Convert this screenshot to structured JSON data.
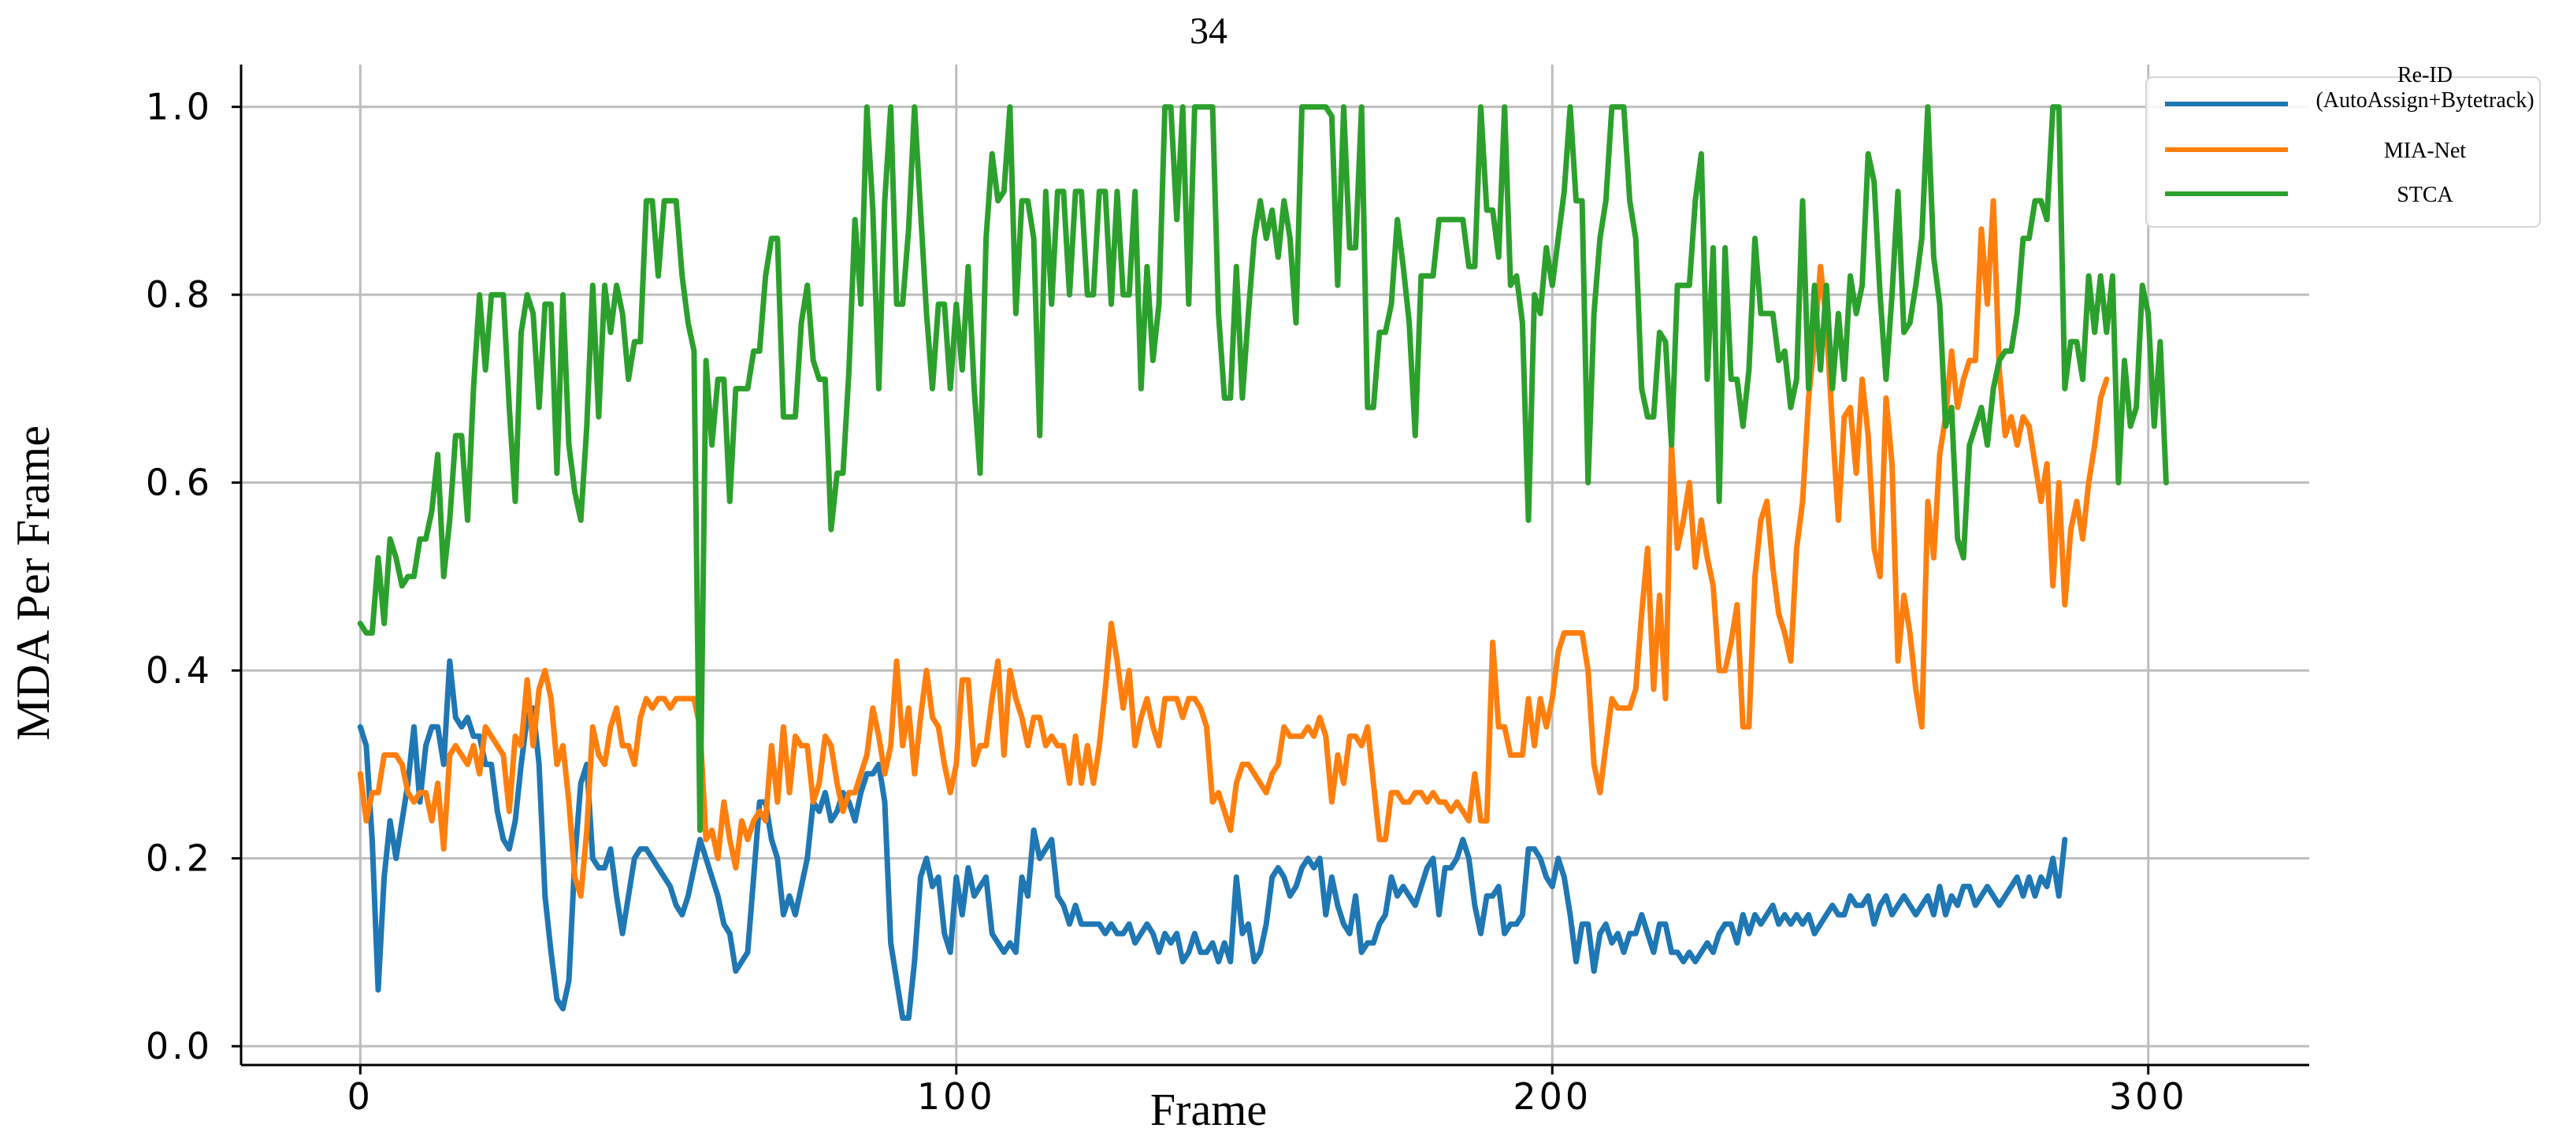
{
  "chart_data": {
    "type": "line",
    "title": "34",
    "xlabel": "Frame",
    "ylabel": "MDA Per Frame",
    "xlim": [
      -20,
      327
    ],
    "ylim": [
      -0.02,
      1.045
    ],
    "xticks": [
      0,
      100,
      200,
      300
    ],
    "xtick_labels": [
      "0",
      "100",
      "200",
      "300"
    ],
    "yticks": [
      0.0,
      0.2,
      0.4,
      0.6,
      0.8,
      1.0
    ],
    "ytick_labels": [
      "0.0",
      "0.2",
      "0.4",
      "0.6",
      "0.8",
      "1.0"
    ],
    "grid": true,
    "legend_position": "top-right",
    "series": [
      {
        "name": "Re-ID\n(AutoAssign+Bytetrack)",
        "color": "#1f77b4",
        "x0": 0,
        "values": [
          0.34,
          0.32,
          0.22,
          0.06,
          0.18,
          0.24,
          0.2,
          0.24,
          0.28,
          0.34,
          0.26,
          0.32,
          0.34,
          0.34,
          0.3,
          0.41,
          0.35,
          0.34,
          0.35,
          0.33,
          0.33,
          0.3,
          0.3,
          0.25,
          0.22,
          0.21,
          0.24,
          0.3,
          0.35,
          0.36,
          0.3,
          0.16,
          0.1,
          0.05,
          0.04,
          0.07,
          0.2,
          0.28,
          0.3,
          0.2,
          0.19,
          0.19,
          0.21,
          0.16,
          0.12,
          0.16,
          0.2,
          0.21,
          0.21,
          0.2,
          0.19,
          0.18,
          0.17,
          0.15,
          0.14,
          0.16,
          0.19,
          0.22,
          0.2,
          0.18,
          0.16,
          0.13,
          0.12,
          0.08,
          0.09,
          0.1,
          0.18,
          0.26,
          0.26,
          0.22,
          0.2,
          0.14,
          0.16,
          0.14,
          0.17,
          0.2,
          0.26,
          0.25,
          0.27,
          0.24,
          0.25,
          0.27,
          0.26,
          0.24,
          0.27,
          0.29,
          0.29,
          0.3,
          0.26,
          0.11,
          0.07,
          0.03,
          0.03,
          0.09,
          0.18,
          0.2,
          0.17,
          0.18,
          0.12,
          0.1,
          0.18,
          0.14,
          0.19,
          0.16,
          0.17,
          0.18,
          0.12,
          0.11,
          0.1,
          0.11,
          0.1,
          0.18,
          0.16,
          0.23,
          0.2,
          0.21,
          0.22,
          0.16,
          0.15,
          0.13,
          0.15,
          0.13,
          0.13,
          0.13,
          0.13,
          0.12,
          0.13,
          0.12,
          0.12,
          0.13,
          0.11,
          0.12,
          0.13,
          0.12,
          0.1,
          0.12,
          0.11,
          0.12,
          0.09,
          0.1,
          0.12,
          0.1,
          0.1,
          0.11,
          0.09,
          0.11,
          0.09,
          0.18,
          0.12,
          0.13,
          0.09,
          0.1,
          0.13,
          0.18,
          0.19,
          0.18,
          0.16,
          0.17,
          0.19,
          0.2,
          0.19,
          0.2,
          0.14,
          0.18,
          0.15,
          0.13,
          0.12,
          0.16,
          0.1,
          0.11,
          0.11,
          0.13,
          0.14,
          0.18,
          0.16,
          0.17,
          0.16,
          0.15,
          0.17,
          0.19,
          0.2,
          0.14,
          0.19,
          0.19,
          0.2,
          0.22,
          0.2,
          0.15,
          0.12,
          0.16,
          0.16,
          0.17,
          0.12,
          0.13,
          0.13,
          0.14,
          0.21,
          0.21,
          0.2,
          0.18,
          0.17,
          0.2,
          0.18,
          0.14,
          0.09,
          0.13,
          0.13,
          0.08,
          0.12,
          0.13,
          0.11,
          0.12,
          0.1,
          0.12,
          0.12,
          0.14,
          0.12,
          0.1,
          0.13,
          0.13,
          0.1,
          0.1,
          0.09,
          0.1,
          0.09,
          0.1,
          0.11,
          0.1,
          0.12,
          0.13,
          0.13,
          0.11,
          0.14,
          0.12,
          0.14,
          0.13,
          0.14,
          0.15,
          0.13,
          0.14,
          0.13,
          0.14,
          0.13,
          0.14,
          0.12,
          0.13,
          0.14,
          0.15,
          0.14,
          0.14,
          0.16,
          0.15,
          0.15,
          0.16,
          0.13,
          0.15,
          0.16,
          0.14,
          0.15,
          0.16,
          0.15,
          0.14,
          0.15,
          0.16,
          0.14,
          0.17,
          0.14,
          0.16,
          0.15,
          0.17,
          0.17,
          0.15,
          0.16,
          0.17,
          0.16,
          0.15,
          0.16,
          0.17,
          0.18,
          0.16,
          0.18,
          0.16,
          0.18,
          0.17,
          0.2,
          0.16,
          0.22
        ]
      },
      {
        "name": "MIA-Net",
        "color": "#ff7f0e",
        "x0": 0,
        "values": [
          0.29,
          0.24,
          0.27,
          0.27,
          0.31,
          0.31,
          0.31,
          0.3,
          0.27,
          0.26,
          0.27,
          0.27,
          0.24,
          0.28,
          0.21,
          0.31,
          0.32,
          0.31,
          0.3,
          0.32,
          0.29,
          0.34,
          0.33,
          0.32,
          0.31,
          0.25,
          0.33,
          0.32,
          0.39,
          0.32,
          0.38,
          0.4,
          0.37,
          0.3,
          0.32,
          0.26,
          0.18,
          0.16,
          0.23,
          0.34,
          0.31,
          0.3,
          0.34,
          0.36,
          0.32,
          0.32,
          0.3,
          0.35,
          0.37,
          0.36,
          0.37,
          0.37,
          0.36,
          0.37,
          0.37,
          0.37,
          0.37,
          0.34,
          0.22,
          0.23,
          0.2,
          0.26,
          0.22,
          0.19,
          0.24,
          0.22,
          0.24,
          0.25,
          0.24,
          0.32,
          0.26,
          0.34,
          0.27,
          0.33,
          0.32,
          0.32,
          0.26,
          0.28,
          0.33,
          0.32,
          0.28,
          0.25,
          0.27,
          0.27,
          0.29,
          0.31,
          0.36,
          0.33,
          0.29,
          0.32,
          0.41,
          0.32,
          0.36,
          0.29,
          0.35,
          0.4,
          0.35,
          0.34,
          0.3,
          0.27,
          0.3,
          0.39,
          0.39,
          0.3,
          0.32,
          0.32,
          0.37,
          0.41,
          0.31,
          0.4,
          0.37,
          0.35,
          0.32,
          0.35,
          0.35,
          0.32,
          0.33,
          0.32,
          0.32,
          0.28,
          0.33,
          0.28,
          0.32,
          0.28,
          0.32,
          0.38,
          0.45,
          0.41,
          0.36,
          0.4,
          0.32,
          0.35,
          0.37,
          0.34,
          0.32,
          0.37,
          0.37,
          0.37,
          0.35,
          0.37,
          0.37,
          0.36,
          0.34,
          0.26,
          0.27,
          0.25,
          0.23,
          0.28,
          0.3,
          0.3,
          0.29,
          0.28,
          0.27,
          0.29,
          0.3,
          0.34,
          0.33,
          0.33,
          0.33,
          0.34,
          0.33,
          0.35,
          0.33,
          0.26,
          0.31,
          0.28,
          0.33,
          0.33,
          0.32,
          0.34,
          0.28,
          0.22,
          0.22,
          0.27,
          0.27,
          0.26,
          0.26,
          0.27,
          0.27,
          0.26,
          0.27,
          0.26,
          0.26,
          0.25,
          0.26,
          0.25,
          0.24,
          0.29,
          0.24,
          0.24,
          0.43,
          0.34,
          0.34,
          0.31,
          0.31,
          0.31,
          0.37,
          0.32,
          0.37,
          0.34,
          0.37,
          0.42,
          0.44,
          0.44,
          0.44,
          0.44,
          0.4,
          0.3,
          0.27,
          0.32,
          0.37,
          0.36,
          0.36,
          0.36,
          0.38,
          0.46,
          0.53,
          0.38,
          0.48,
          0.37,
          0.64,
          0.53,
          0.56,
          0.6,
          0.51,
          0.56,
          0.52,
          0.49,
          0.4,
          0.4,
          0.43,
          0.47,
          0.34,
          0.34,
          0.5,
          0.56,
          0.58,
          0.51,
          0.46,
          0.44,
          0.41,
          0.53,
          0.58,
          0.69,
          0.75,
          0.83,
          0.77,
          0.66,
          0.56,
          0.67,
          0.68,
          0.61,
          0.71,
          0.65,
          0.53,
          0.5,
          0.69,
          0.62,
          0.41,
          0.48,
          0.44,
          0.38,
          0.34,
          0.58,
          0.52,
          0.63,
          0.67,
          0.74,
          0.68,
          0.71,
          0.73,
          0.73,
          0.87,
          0.79,
          0.9,
          0.72,
          0.65,
          0.67,
          0.64,
          0.67,
          0.66,
          0.62,
          0.58,
          0.62,
          0.49,
          0.6,
          0.47,
          0.55,
          0.58,
          0.54,
          0.6,
          0.64,
          0.69,
          0.71
        ]
      },
      {
        "name": "STCA",
        "color": "#2ca02c",
        "x0": 0,
        "values": [
          0.45,
          0.44,
          0.44,
          0.52,
          0.45,
          0.54,
          0.52,
          0.49,
          0.5,
          0.5,
          0.54,
          0.54,
          0.57,
          0.63,
          0.5,
          0.56,
          0.65,
          0.65,
          0.56,
          0.7,
          0.8,
          0.72,
          0.8,
          0.8,
          0.8,
          0.68,
          0.58,
          0.76,
          0.8,
          0.78,
          0.68,
          0.79,
          0.79,
          0.61,
          0.8,
          0.64,
          0.59,
          0.56,
          0.66,
          0.81,
          0.67,
          0.81,
          0.76,
          0.81,
          0.78,
          0.71,
          0.75,
          0.75,
          0.9,
          0.9,
          0.82,
          0.9,
          0.9,
          0.9,
          0.82,
          0.77,
          0.74,
          0.23,
          0.73,
          0.64,
          0.71,
          0.71,
          0.58,
          0.7,
          0.7,
          0.7,
          0.74,
          0.74,
          0.82,
          0.86,
          0.86,
          0.67,
          0.67,
          0.67,
          0.77,
          0.81,
          0.73,
          0.71,
          0.71,
          0.55,
          0.61,
          0.61,
          0.72,
          0.88,
          0.79,
          1.0,
          0.89,
          0.7,
          0.9,
          1.0,
          0.79,
          0.79,
          0.87,
          1.0,
          0.89,
          0.78,
          0.7,
          0.79,
          0.79,
          0.7,
          0.79,
          0.72,
          0.83,
          0.7,
          0.61,
          0.86,
          0.95,
          0.9,
          0.91,
          1.0,
          0.78,
          0.9,
          0.9,
          0.86,
          0.65,
          0.91,
          0.79,
          0.91,
          0.91,
          0.8,
          0.91,
          0.91,
          0.8,
          0.8,
          0.91,
          0.91,
          0.79,
          0.91,
          0.8,
          0.8,
          0.91,
          0.7,
          0.83,
          0.73,
          0.79,
          1.0,
          1.0,
          0.88,
          1.0,
          0.79,
          1.0,
          1.0,
          1.0,
          1.0,
          0.78,
          0.69,
          0.69,
          0.83,
          0.69,
          0.78,
          0.86,
          0.9,
          0.86,
          0.89,
          0.84,
          0.9,
          0.86,
          0.77,
          1.0,
          1.0,
          1.0,
          1.0,
          1.0,
          0.99,
          0.81,
          1.0,
          0.85,
          0.85,
          1.0,
          0.68,
          0.68,
          0.76,
          0.76,
          0.79,
          0.88,
          0.83,
          0.77,
          0.65,
          0.82,
          0.82,
          0.82,
          0.88,
          0.88,
          0.88,
          0.88,
          0.88,
          0.83,
          0.83,
          1.0,
          0.89,
          0.89,
          0.84,
          1.0,
          0.81,
          0.82,
          0.77,
          0.56,
          0.8,
          0.78,
          0.85,
          0.81,
          0.86,
          0.91,
          1.0,
          0.9,
          0.9,
          0.6,
          0.78,
          0.86,
          0.9,
          1.0,
          1.0,
          1.0,
          0.9,
          0.86,
          0.7,
          0.67,
          0.67,
          0.76,
          0.75,
          0.64,
          0.81,
          0.81,
          0.81,
          0.9,
          0.95,
          0.71,
          0.85,
          0.58,
          0.85,
          0.71,
          0.71,
          0.66,
          0.72,
          0.86,
          0.78,
          0.78,
          0.78,
          0.73,
          0.74,
          0.68,
          0.71,
          0.9,
          0.7,
          0.81,
          0.72,
          0.81,
          0.7,
          0.78,
          0.71,
          0.82,
          0.78,
          0.81,
          0.95,
          0.92,
          0.8,
          0.71,
          0.8,
          0.91,
          0.76,
          0.77,
          0.81,
          0.86,
          1.0,
          0.84,
          0.79,
          0.66,
          0.68,
          0.54,
          0.52,
          0.64,
          0.66,
          0.68,
          0.64,
          0.7,
          0.73,
          0.74,
          0.74,
          0.78,
          0.86,
          0.86,
          0.9,
          0.9,
          0.88,
          1.0,
          1.0,
          0.7,
          0.75,
          0.75,
          0.71,
          0.82,
          0.76,
          0.82,
          0.76,
          0.82,
          0.6,
          0.73,
          0.66,
          0.68,
          0.81,
          0.78,
          0.66,
          0.75,
          0.6
        ]
      }
    ]
  }
}
